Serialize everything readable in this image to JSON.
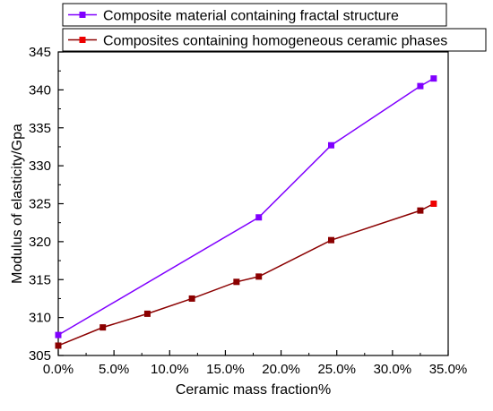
{
  "chart_data": {
    "type": "line",
    "title": "",
    "xlabel": "Ceramic mass fraction%",
    "ylabel": "Modulus of elasticity/Gpa",
    "xlim": [
      0,
      35
    ],
    "ylim": [
      305,
      345
    ],
    "xticks": [
      0,
      5,
      10,
      15,
      20,
      25,
      30,
      35
    ],
    "xtick_labels": [
      "0.0%",
      "5.0%",
      "10.0%",
      "15.0%",
      "20.0%",
      "25.0%",
      "30.0%",
      "35.0%"
    ],
    "yticks": [
      305,
      310,
      315,
      320,
      325,
      330,
      335,
      340,
      345
    ],
    "ytick_labels": [
      "305",
      "310",
      "315",
      "320",
      "325",
      "330",
      "335",
      "340",
      "345"
    ],
    "grid": false,
    "legend_position": "top",
    "series": [
      {
        "name": "Composite material containing fractal structure",
        "color": "#8000ff",
        "marker": "square",
        "x": [
          0,
          18,
          24.5,
          32.5,
          33.7
        ],
        "y": [
          307.7,
          323.2,
          332.7,
          340.5,
          341.5
        ]
      },
      {
        "name": "Composites containing homogeneous ceramic phases",
        "color": "#8b0000",
        "marker_color": "#ee0000",
        "marker": "square",
        "x": [
          0,
          4,
          8,
          12,
          16,
          18,
          24.5,
          32.5,
          33.7
        ],
        "y": [
          306.3,
          308.7,
          310.5,
          312.5,
          314.7,
          315.4,
          320.2,
          324.1,
          325
        ]
      }
    ]
  }
}
